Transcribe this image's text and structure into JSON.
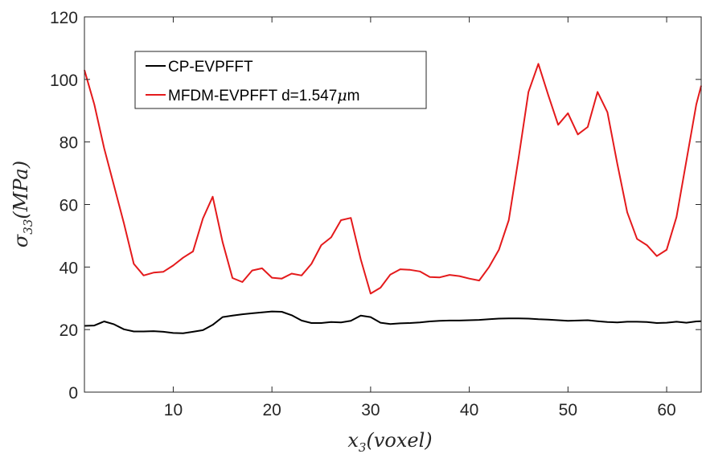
{
  "chart_data": {
    "type": "line",
    "xlabel": "x3(voxel)",
    "ylabel": "σ33(MPa)",
    "xlim": [
      1,
      63.5
    ],
    "ylim": [
      0,
      120
    ],
    "xticks": [
      10,
      20,
      30,
      40,
      50,
      60
    ],
    "yticks": [
      0,
      20,
      40,
      60,
      80,
      100,
      120
    ],
    "xtick_labels": [
      "10",
      "20",
      "30",
      "40",
      "50",
      "60"
    ],
    "ytick_labels": [
      "0",
      "20",
      "40",
      "60",
      "80",
      "100",
      "120"
    ],
    "grid": false,
    "legend_position": "top-left",
    "x": [
      1,
      2,
      3,
      4,
      5,
      6,
      7,
      8,
      9,
      10,
      11,
      12,
      13,
      14,
      15,
      16,
      17,
      18,
      19,
      20,
      21,
      22,
      23,
      24,
      25,
      26,
      27,
      28,
      29,
      30,
      31,
      32,
      33,
      34,
      35,
      36,
      37,
      38,
      39,
      40,
      41,
      42,
      43,
      44,
      45,
      46,
      47,
      48,
      49,
      50,
      51,
      52,
      53,
      54,
      55,
      56,
      57,
      58,
      59,
      60,
      61,
      62,
      63,
      63.5
    ],
    "series": [
      {
        "name": "CP-EVPFFT",
        "color": "#000000",
        "values": [
          21.2,
          21.3,
          22.6,
          21.7,
          20.1,
          19.4,
          19.4,
          19.5,
          19.3,
          18.9,
          18.8,
          19.3,
          19.8,
          21.5,
          24.0,
          24.5,
          24.9,
          25.2,
          25.5,
          25.8,
          25.7,
          24.6,
          22.9,
          22.1,
          22.1,
          22.4,
          22.3,
          22.8,
          24.5,
          24.0,
          22.2,
          21.8,
          22.0,
          22.1,
          22.3,
          22.6,
          22.8,
          22.9,
          22.9,
          23.0,
          23.1,
          23.3,
          23.5,
          23.6,
          23.6,
          23.5,
          23.3,
          23.2,
          23.0,
          22.8,
          22.9,
          23.0,
          22.7,
          22.4,
          22.3,
          22.5,
          22.5,
          22.4,
          22.1,
          22.2,
          22.5,
          22.2,
          22.6,
          22.7
        ]
      },
      {
        "name": "MFDM-EVPFFT d=1.547μm",
        "color": "#e41a1c",
        "values": [
          103,
          92,
          78,
          66,
          54,
          41,
          37.3,
          38.2,
          38.5,
          40.5,
          43.0,
          45.0,
          55.5,
          62.5,
          48,
          36.5,
          35.2,
          38.9,
          39.6,
          36.6,
          36.3,
          37.9,
          37.3,
          41,
          47,
          49.5,
          55,
          55.7,
          42.5,
          31.5,
          33.4,
          37.6,
          39.3,
          39.1,
          38.6,
          36.8,
          36.7,
          37.5,
          37.1,
          36.3,
          35.7,
          40,
          45.5,
          55,
          75,
          96,
          105,
          95,
          85.5,
          89.2,
          82.4,
          84.8,
          96,
          89.5,
          73,
          57.5,
          49,
          47,
          43.5,
          45.5,
          56,
          74,
          92,
          98
        ]
      }
    ]
  }
}
